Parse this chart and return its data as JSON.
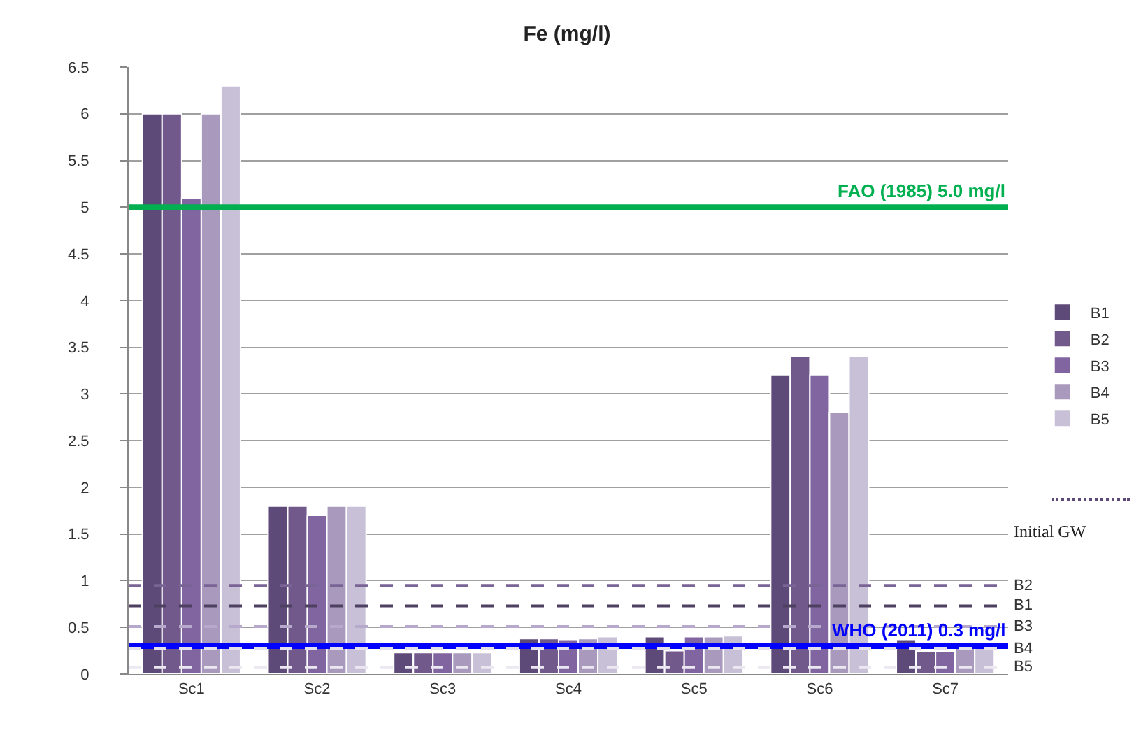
{
  "chart_data": {
    "type": "bar",
    "title": "Fe (mg/l)",
    "categories": [
      "Sc1",
      "Sc2",
      "Sc3",
      "Sc4",
      "Sc5",
      "Sc6",
      "Sc7"
    ],
    "series": [
      {
        "name": "B1",
        "color": "#5e4a78",
        "values": [
          6,
          1.8,
          0.23,
          0.38,
          0.4,
          3.2,
          0.37
        ]
      },
      {
        "name": "B2",
        "color": "#71598c",
        "values": [
          6,
          1.8,
          0.23,
          0.38,
          0.25,
          3.4,
          0.24
        ]
      },
      {
        "name": "B3",
        "color": "#8065a0",
        "values": [
          5.1,
          1.7,
          0.23,
          0.37,
          0.4,
          3.2,
          0.24
        ]
      },
      {
        "name": "B4",
        "color": "#a99abd",
        "values": [
          6,
          1.8,
          0.23,
          0.38,
          0.4,
          2.8,
          0.3
        ]
      },
      {
        "name": "B5",
        "color": "#c8c0d6",
        "values": [
          6.3,
          1.8,
          0.23,
          0.4,
          0.41,
          3.4,
          0.3
        ]
      }
    ],
    "ylim": [
      0,
      6.5
    ],
    "yticks": [
      0,
      0.5,
      1,
      1.5,
      2,
      2.5,
      3,
      3.5,
      4,
      4.5,
      5,
      5.5,
      6,
      6.5
    ],
    "grid": "y",
    "legend": "right",
    "ref_lines": [
      {
        "axis": "y",
        "value": 5,
        "label": "FAO (1985) 5.0 mg/l",
        "color": "#00b050",
        "line_style": "solid"
      },
      {
        "axis": "y",
        "value": 0.3,
        "label": "WHO (2011) 0.3 mg/l",
        "color": "#0000ff",
        "line_style": "solid"
      },
      {
        "axis": "y",
        "value": 0.95,
        "label": "B2",
        "color": "#7a6496",
        "line_style": "dashed"
      },
      {
        "axis": "y",
        "value": 0.73,
        "label": "B1",
        "color": "#4e4060",
        "line_style": "dashed"
      },
      {
        "axis": "y",
        "value": 0.51,
        "label": "B3",
        "color": "#b7a9cc",
        "line_style": "dashed"
      },
      {
        "axis": "y",
        "value": 0.27,
        "label": "B4",
        "color": "#e4dfec",
        "line_style": "dashed"
      },
      {
        "axis": "y",
        "value": 0.07,
        "label": "B5",
        "color": "#ece8f2",
        "line_style": "dashed"
      }
    ],
    "annotations": [
      "Initial GW"
    ]
  }
}
